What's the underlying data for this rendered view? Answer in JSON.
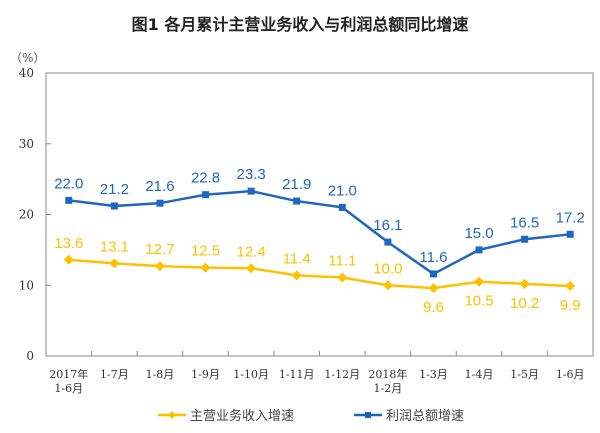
{
  "chart_data": {
    "type": "line",
    "title": "图1  各月累计主营业务收入与利润总额同比增速",
    "ylabel": "（%）",
    "xlabel": "",
    "ylim": [
      0,
      40
    ],
    "yticks": [
      "0",
      "10",
      "20",
      "30",
      "40"
    ],
    "ytick_values": [
      0,
      10,
      20,
      30,
      40
    ],
    "categories": [
      [
        "2017年",
        "1-6月"
      ],
      [
        "1-7月"
      ],
      [
        "1-8月"
      ],
      [
        "1-9月"
      ],
      [
        "1-10月"
      ],
      [
        "1-11月"
      ],
      [
        "1-12月"
      ],
      [
        "2018年",
        "1-2月"
      ],
      [
        "1-3月"
      ],
      [
        "1-4月"
      ],
      [
        "1-5月"
      ],
      [
        "1-6月"
      ]
    ],
    "grid": false,
    "legend_position": "bottom",
    "series": [
      {
        "name": "主营业务收入增速",
        "color": "#FFC000",
        "marker": "diamond",
        "values": [
          13.6,
          13.1,
          12.7,
          12.5,
          12.4,
          11.4,
          11.1,
          10.0,
          9.6,
          10.5,
          10.2,
          9.9
        ],
        "labels": [
          "13.6",
          "13.1",
          "12.7",
          "12.5",
          "12.4",
          "11.4",
          "11.1",
          "10.0",
          "9.6",
          "10.5",
          "10.2",
          "9.9"
        ],
        "label_positions": [
          "above",
          "above",
          "above",
          "above",
          "above",
          "above",
          "above",
          "above",
          "below",
          "below",
          "below",
          "below"
        ]
      },
      {
        "name": "利润总额增速",
        "color": "#1F66C1",
        "marker": "square",
        "values": [
          22.0,
          21.2,
          21.6,
          22.8,
          23.3,
          21.9,
          21.0,
          16.1,
          11.6,
          15.0,
          16.5,
          17.2
        ],
        "labels": [
          "22.0",
          "21.2",
          "21.6",
          "22.8",
          "23.3",
          "21.9",
          "21.0",
          "16.1",
          "11.6",
          "15.0",
          "16.5",
          "17.2"
        ],
        "label_positions": [
          "above",
          "above",
          "above",
          "above",
          "above",
          "above",
          "above",
          "above",
          "above",
          "above",
          "above",
          "above"
        ]
      }
    ]
  }
}
